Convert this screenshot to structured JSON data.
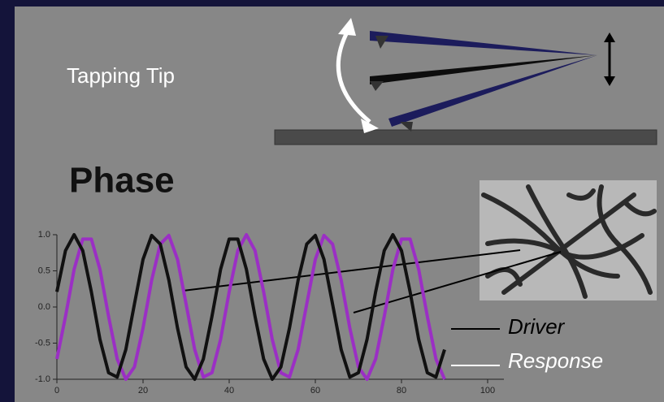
{
  "diagram": {
    "label": "Tapping Tip"
  },
  "chart_data": {
    "type": "line",
    "title": "Phase",
    "x": [
      0,
      2,
      4,
      6,
      8,
      10,
      12,
      14,
      16,
      18,
      20,
      22,
      24,
      26,
      28,
      30,
      32,
      34,
      36,
      38,
      40,
      42,
      44,
      46,
      48,
      50,
      52,
      54,
      56,
      58,
      60,
      62,
      64,
      66,
      68,
      70,
      72,
      74,
      76,
      78,
      80,
      82,
      84,
      86,
      88,
      90
    ],
    "series": [
      {
        "name": "Driver",
        "color": "#111111",
        "values": [
          0.21,
          0.78,
          1,
          0.78,
          0.21,
          -0.45,
          -0.91,
          -0.97,
          -0.59,
          0.04,
          0.66,
          0.99,
          0.87,
          0.37,
          -0.29,
          -0.83,
          -1,
          -0.72,
          -0.13,
          0.52,
          0.94,
          0.94,
          0.52,
          -0.13,
          -0.72,
          -1,
          -0.83,
          -0.29,
          0.37,
          0.87,
          0.99,
          0.66,
          0.04,
          -0.59,
          -0.97,
          -0.91,
          -0.45,
          0.21,
          0.78,
          1,
          0.78,
          0.21,
          -0.45,
          -0.91,
          -0.97,
          -0.59
        ]
      },
      {
        "name": "Response",
        "color": "#9b2fc4",
        "values": [
          -0.72,
          -0.13,
          0.52,
          0.94,
          0.94,
          0.52,
          -0.13,
          -0.72,
          -1,
          -0.83,
          -0.29,
          0.37,
          0.87,
          0.99,
          0.66,
          0.04,
          -0.59,
          -0.97,
          -0.91,
          -0.45,
          0.21,
          0.78,
          1,
          0.78,
          0.21,
          -0.45,
          -0.91,
          -0.97,
          -0.59,
          0.04,
          0.66,
          0.99,
          0.87,
          0.37,
          -0.29,
          -0.83,
          -1,
          -0.72,
          -0.13,
          0.52,
          0.94,
          0.94,
          0.52,
          -0.13,
          -0.72,
          -1
        ]
      }
    ],
    "xlim": [
      0,
      100
    ],
    "ylim": [
      -1,
      1
    ],
    "xticks": [
      0,
      20,
      40,
      60,
      80,
      100
    ],
    "yticks": [
      {
        "value": 1,
        "label": "1.0"
      },
      0.5,
      {
        "value": 0,
        "label": "0.0"
      },
      -0.5,
      {
        "value": -1,
        "label": "-1.0"
      }
    ]
  }
}
